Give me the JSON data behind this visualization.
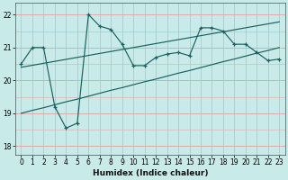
{
  "xlabel": "Humidex (Indice chaleur)",
  "background_color": "#c8eae8",
  "grid_color_h": "#ddaaaa",
  "grid_color_v": "#aacccc",
  "line_color": "#1a6060",
  "x_values": [
    0,
    1,
    2,
    3,
    4,
    5,
    6,
    7,
    8,
    9,
    10,
    11,
    12,
    13,
    14,
    15,
    16,
    17,
    18,
    19,
    20,
    21,
    22,
    23
  ],
  "y_main": [
    20.5,
    21.0,
    21.0,
    19.2,
    18.55,
    18.7,
    22.0,
    21.65,
    21.55,
    21.1,
    20.45,
    20.45,
    20.7,
    20.8,
    20.85,
    20.75,
    21.6,
    21.6,
    21.5,
    21.1,
    21.1,
    20.85,
    20.6,
    20.65
  ],
  "y_upper": [
    20.4,
    20.46,
    20.52,
    20.58,
    20.64,
    20.7,
    20.76,
    20.82,
    20.88,
    20.94,
    21.0,
    21.06,
    21.12,
    21.18,
    21.24,
    21.3,
    21.36,
    21.42,
    21.48,
    21.54,
    21.6,
    21.66,
    21.72,
    21.78
  ],
  "y_lower": [
    19.0,
    19.09,
    19.17,
    19.26,
    19.35,
    19.43,
    19.52,
    19.61,
    19.7,
    19.78,
    19.87,
    19.96,
    20.04,
    20.13,
    20.22,
    20.3,
    20.39,
    20.48,
    20.57,
    20.65,
    20.74,
    20.83,
    20.91,
    21.0
  ],
  "ylim": [
    17.75,
    22.35
  ],
  "xlim": [
    -0.5,
    23.5
  ],
  "yticks": [
    18,
    19,
    20,
    21,
    22
  ],
  "xticks": [
    0,
    1,
    2,
    3,
    4,
    5,
    6,
    7,
    8,
    9,
    10,
    11,
    12,
    13,
    14,
    15,
    16,
    17,
    18,
    19,
    20,
    21,
    22,
    23
  ],
  "tick_fontsize": 5.5,
  "xlabel_fontsize": 6.5
}
